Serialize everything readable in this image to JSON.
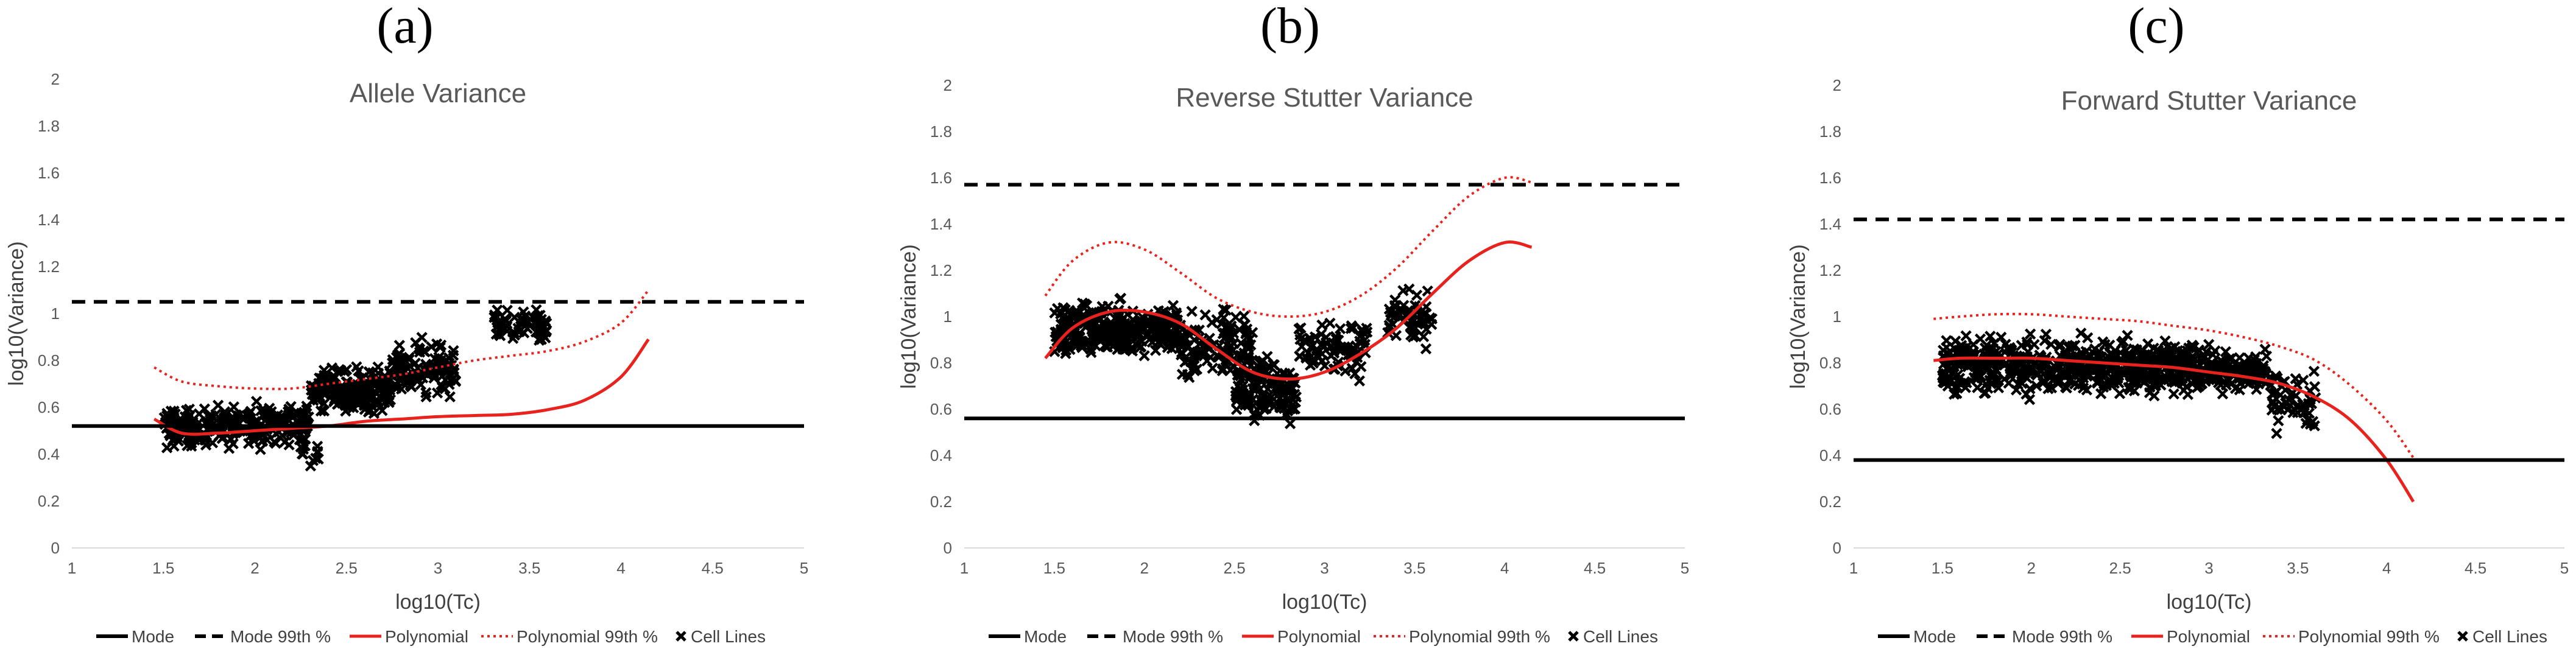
{
  "figure": {
    "legend_entries": [
      "Mode",
      "Mode 99th %",
      "Polynomial",
      "Polynomial 99th %",
      "Cell Lines"
    ]
  },
  "chart_data": [
    {
      "panel_label": "(a)",
      "type": "scatter",
      "title": "Allele Variance",
      "xlabel": "log10(Tc)",
      "ylabel": "log10(Variance)",
      "xlim": [
        1,
        5
      ],
      "ylim": [
        0,
        2
      ],
      "x_ticks": [
        "1",
        "1.5",
        "2",
        "2.5",
        "3",
        "3.5",
        "4",
        "4.5",
        "5"
      ],
      "y_ticks": [
        "0",
        "0.2",
        "0.4",
        "0.6",
        "0.8",
        "1",
        "1.2",
        "1.4",
        "1.6",
        "1.8",
        "2"
      ],
      "grid": false,
      "legend_position": "bottom",
      "colors": {
        "mode": "#000000",
        "polynomial": "#e8221d",
        "cell_lines": "#000000"
      },
      "mode": 0.52,
      "mode_99th": 1.05,
      "polynomial": {
        "x": [
          1.45,
          1.6,
          1.8,
          2.0,
          2.2,
          2.4,
          2.6,
          2.8,
          3.0,
          3.2,
          3.4,
          3.6,
          3.8,
          4.0,
          4.15
        ],
        "y": [
          0.55,
          0.49,
          0.49,
          0.5,
          0.51,
          0.52,
          0.54,
          0.55,
          0.56,
          0.565,
          0.57,
          0.59,
          0.63,
          0.73,
          0.89
        ]
      },
      "polynomial_99th": {
        "x": [
          1.45,
          1.6,
          1.8,
          2.0,
          2.2,
          2.4,
          2.6,
          2.8,
          3.0,
          3.2,
          3.4,
          3.6,
          3.8,
          4.0,
          4.15
        ],
        "y": [
          0.77,
          0.71,
          0.69,
          0.68,
          0.68,
          0.7,
          0.72,
          0.74,
          0.77,
          0.8,
          0.82,
          0.84,
          0.88,
          0.96,
          1.1
        ]
      },
      "cell_lines": [
        {
          "x0": 1.5,
          "x1": 1.7,
          "y0": 0.4,
          "y1": 0.62,
          "n": 90
        },
        {
          "x0": 1.72,
          "x1": 2.3,
          "y0": 0.4,
          "y1": 0.65,
          "n": 190
        },
        {
          "x0": 2.25,
          "x1": 2.35,
          "y0": 0.34,
          "y1": 0.48,
          "n": 12
        },
        {
          "x0": 2.3,
          "x1": 2.75,
          "y0": 0.55,
          "y1": 0.8,
          "n": 190
        },
        {
          "x0": 2.75,
          "x1": 3.1,
          "y0": 0.6,
          "y1": 0.92,
          "n": 110
        },
        {
          "x0": 3.3,
          "x1": 3.6,
          "y0": 0.84,
          "y1": 1.04,
          "n": 70
        }
      ]
    },
    {
      "panel_label": "(b)",
      "type": "scatter",
      "title": "Reverse Stutter Variance",
      "xlabel": "log10(Tc)",
      "ylabel": "log10(Variance)",
      "xlim": [
        1,
        5
      ],
      "ylim": [
        0,
        2
      ],
      "x_ticks": [
        "1",
        "1.5",
        "2",
        "2.5",
        "3",
        "3.5",
        "4",
        "4.5",
        "5"
      ],
      "y_ticks": [
        "0",
        "0.2",
        "0.4",
        "0.6",
        "0.8",
        "1",
        "1.2",
        "1.4",
        "1.6",
        "1.8",
        "2"
      ],
      "grid": false,
      "legend_position": "bottom",
      "colors": {
        "mode": "#000000",
        "polynomial": "#e8221d",
        "cell_lines": "#000000"
      },
      "mode": 0.56,
      "mode_99th": 1.57,
      "polynomial": {
        "x": [
          1.45,
          1.6,
          1.8,
          2.0,
          2.2,
          2.4,
          2.6,
          2.8,
          3.0,
          3.2,
          3.4,
          3.6,
          3.8,
          4.0,
          4.15
        ],
        "y": [
          0.82,
          0.95,
          1.02,
          1.02,
          0.97,
          0.86,
          0.76,
          0.73,
          0.76,
          0.84,
          0.95,
          1.1,
          1.24,
          1.32,
          1.3
        ]
      },
      "polynomial_99th": {
        "x": [
          1.45,
          1.6,
          1.8,
          2.0,
          2.2,
          2.4,
          2.6,
          2.8,
          3.0,
          3.2,
          3.4,
          3.6,
          3.8,
          4.0,
          4.15
        ],
        "y": [
          1.09,
          1.24,
          1.32,
          1.29,
          1.19,
          1.08,
          1.02,
          1.0,
          1.02,
          1.09,
          1.21,
          1.37,
          1.52,
          1.6,
          1.58
        ]
      },
      "cell_lines": [
        {
          "x0": 1.5,
          "x1": 2.2,
          "y0": 0.78,
          "y1": 1.1,
          "n": 300
        },
        {
          "x0": 2.2,
          "x1": 2.6,
          "y0": 0.68,
          "y1": 1.08,
          "n": 120
        },
        {
          "x0": 2.5,
          "x1": 2.85,
          "y0": 0.48,
          "y1": 0.88,
          "n": 140
        },
        {
          "x0": 2.85,
          "x1": 3.25,
          "y0": 0.68,
          "y1": 1.06,
          "n": 80
        },
        {
          "x0": 3.35,
          "x1": 3.6,
          "y0": 0.84,
          "y1": 1.15,
          "n": 55
        }
      ]
    },
    {
      "panel_label": "(c)",
      "type": "scatter",
      "title": "Forward Stutter Variance",
      "xlabel": "log10(Tc)",
      "ylabel": "log10(Variance)",
      "xlim": [
        1,
        5
      ],
      "ylim": [
        0,
        2
      ],
      "x_ticks": [
        "1",
        "1.5",
        "2",
        "2.5",
        "3",
        "3.5",
        "4",
        "4.5",
        "5"
      ],
      "y_ticks": [
        "0",
        "0.2",
        "0.4",
        "0.6",
        "0.8",
        "1",
        "1.2",
        "1.4",
        "1.6",
        "1.8",
        "2"
      ],
      "grid": false,
      "legend_position": "bottom",
      "colors": {
        "mode": "#000000",
        "polynomial": "#e8221d",
        "cell_lines": "#000000"
      },
      "mode": 0.38,
      "mode_99th": 1.42,
      "polynomial": {
        "x": [
          1.45,
          1.6,
          1.8,
          2.0,
          2.2,
          2.4,
          2.6,
          2.8,
          3.0,
          3.2,
          3.4,
          3.6,
          3.8,
          4.0,
          4.15
        ],
        "y": [
          0.81,
          0.82,
          0.82,
          0.82,
          0.81,
          0.8,
          0.79,
          0.78,
          0.76,
          0.74,
          0.71,
          0.65,
          0.55,
          0.38,
          0.2
        ]
      },
      "polynomial_99th": {
        "x": [
          1.45,
          1.6,
          1.8,
          2.0,
          2.2,
          2.4,
          2.6,
          2.8,
          3.0,
          3.2,
          3.4,
          3.6,
          3.8,
          4.0,
          4.15
        ],
        "y": [
          0.99,
          1.0,
          1.01,
          1.01,
          1.0,
          0.99,
          0.98,
          0.96,
          0.94,
          0.91,
          0.87,
          0.81,
          0.7,
          0.55,
          0.39
        ]
      },
      "cell_lines": [
        {
          "x0": 1.5,
          "x1": 2.3,
          "y0": 0.62,
          "y1": 0.96,
          "n": 300
        },
        {
          "x0": 2.3,
          "x1": 3.0,
          "y0": 0.62,
          "y1": 0.94,
          "n": 280
        },
        {
          "x0": 3.0,
          "x1": 3.35,
          "y0": 0.64,
          "y1": 0.88,
          "n": 110
        },
        {
          "x0": 3.35,
          "x1": 3.6,
          "y0": 0.46,
          "y1": 0.8,
          "n": 50
        }
      ]
    }
  ]
}
